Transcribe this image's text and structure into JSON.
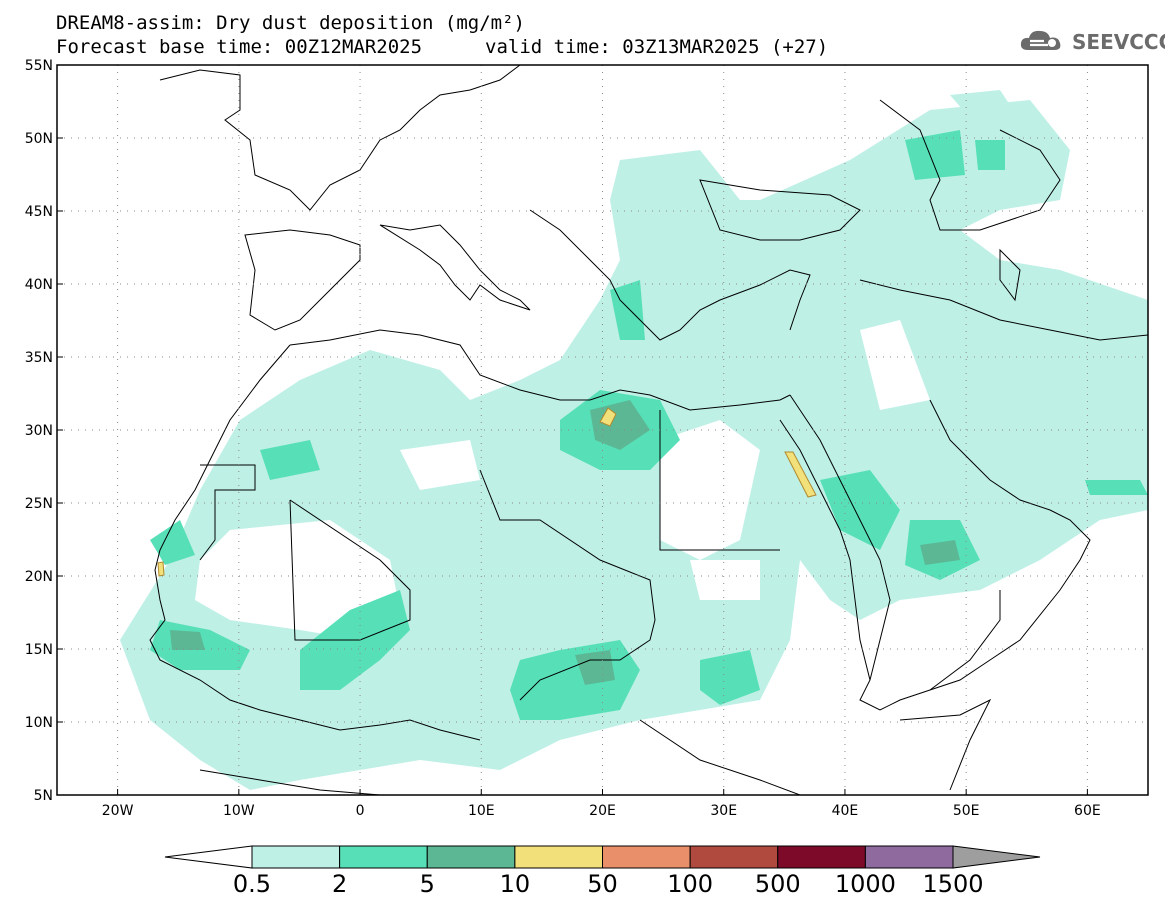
{
  "header": {
    "title_line1": "DREAM8-assim: Dry dust deposition (mg/m²)",
    "title_line2_left": "Forecast base time: 00Z12MAR2025",
    "title_line2_right": "valid time: 03Z13MAR2025 (+27)",
    "logo_text": "SEEVCCC",
    "logo_icon": "cloud-logo-icon"
  },
  "map": {
    "lon_range": [
      -25,
      65
    ],
    "lat_range": [
      5,
      55
    ],
    "lon_ticks": [
      "20W",
      "10W",
      "0",
      "10E",
      "20E",
      "30E",
      "40E",
      "50E",
      "60E"
    ],
    "lat_ticks": [
      "55N",
      "50N",
      "45N",
      "40N",
      "35N",
      "30N",
      "25N",
      "20N",
      "15N",
      "10N",
      "5N"
    ],
    "grid": "dotted",
    "coastlines": "black"
  },
  "colorbar": {
    "labels": [
      "0.5",
      "2",
      "5",
      "10",
      "50",
      "100",
      "500",
      "1000",
      "1500"
    ],
    "colors": [
      "#bff0e6",
      "#57e0b8",
      "#5cb894",
      "#f2e07a",
      "#e98f6a",
      "#b04a3e",
      "#7e0a2a",
      "#8e6a9e",
      "#9e9e9e"
    ],
    "under_color": "#ffffff",
    "over_color": "#9e9e9e"
  }
}
